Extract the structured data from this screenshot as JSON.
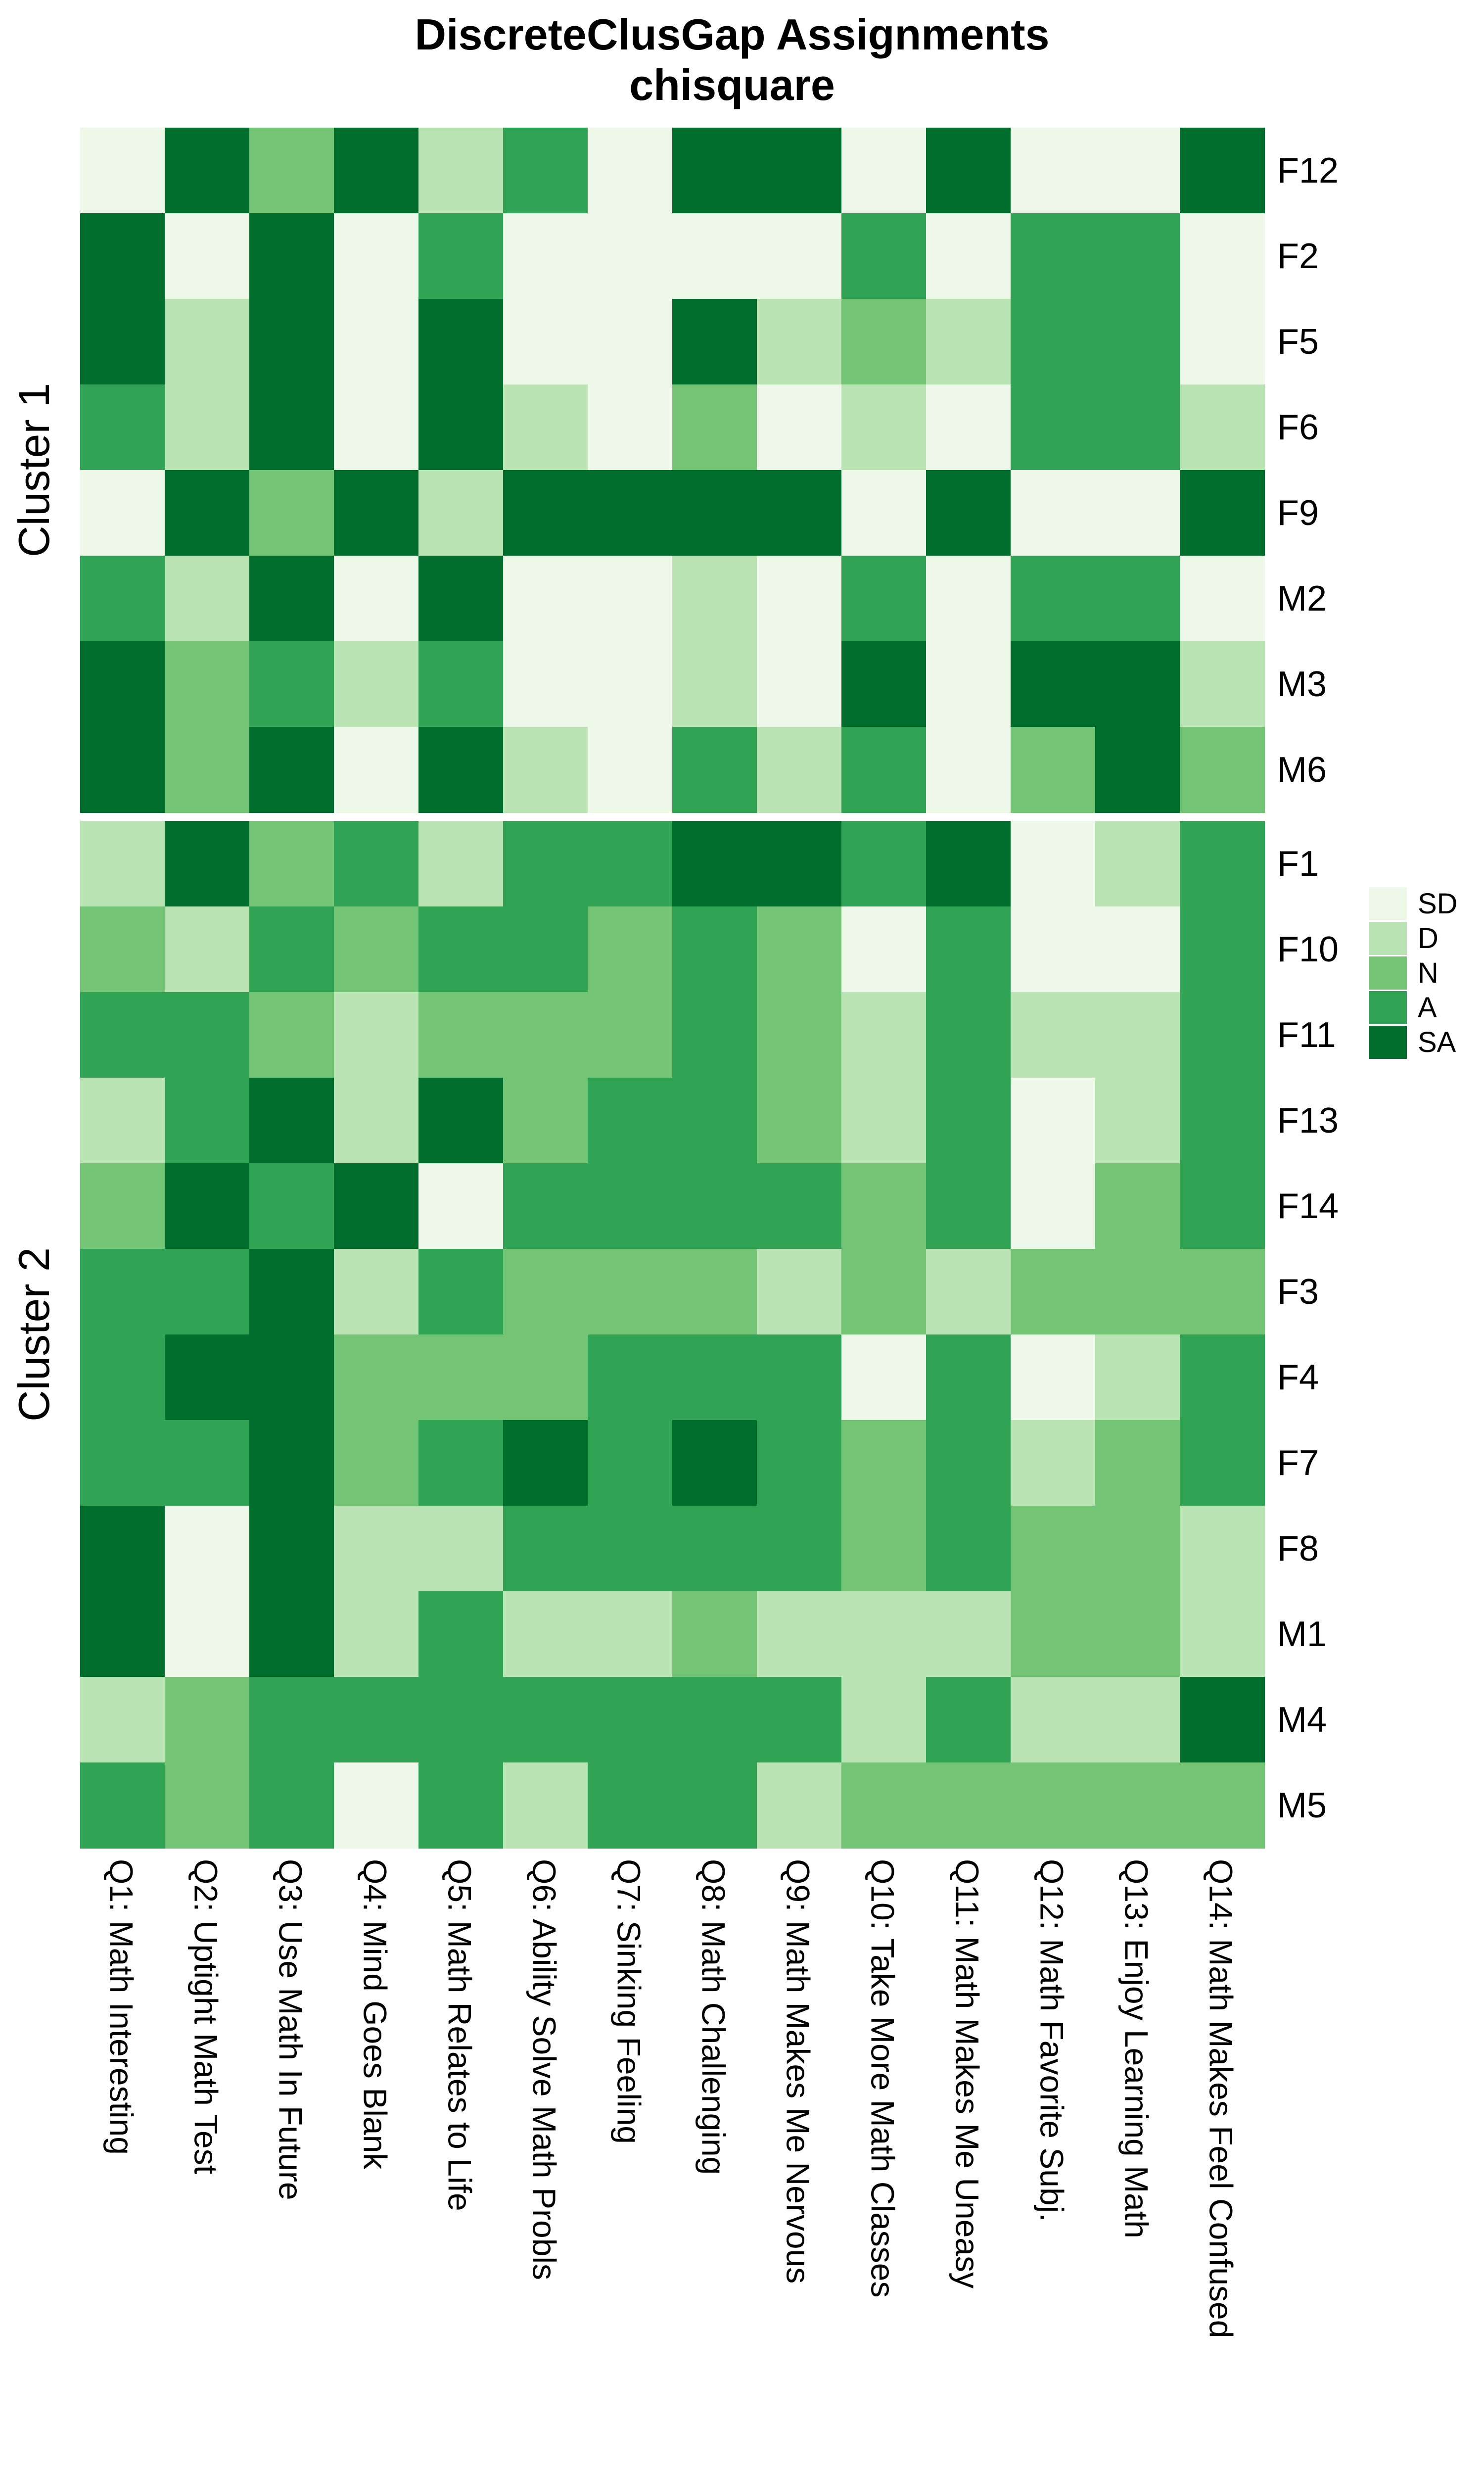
{
  "title": "DiscreteClusGap Assignments",
  "subtitle": "chisquare",
  "chart_data": {
    "type": "heatmap",
    "title": "DiscreteClusGap Assignments",
    "subtitle": "chisquare",
    "x_labels": [
      "Q1: Math Interesting",
      "Q2: Uptight Math Test",
      "Q3: Use Math In Future",
      "Q4: Mind Goes Blank",
      "Q5: Math Relates to Life",
      "Q6: Ability Solve Math Probls",
      "Q7: Sinking Feeling",
      "Q8: Math Challenging",
      "Q9: Math Makes Me Nervous",
      "Q10: Take More Math Classes",
      "Q11: Math Makes Me Uneasy",
      "Q12: Math Favorite Subj.",
      "Q13: Enjoy Learning Math",
      "Q14: Math Makes Feel Confused"
    ],
    "value_scale": [
      "SD",
      "D",
      "N",
      "A",
      "SA"
    ],
    "legend": {
      "position": "right",
      "labels": [
        "SD",
        "D",
        "N",
        "A",
        "SA"
      ],
      "colors": {
        "SD": "#edf8e9",
        "D": "#bae4b3",
        "N": "#74c476",
        "A": "#31a354",
        "SA": "#006d2c"
      }
    },
    "row_groups": [
      {
        "label": "Cluster 1",
        "rows": [
          "F12",
          "F2",
          "F5",
          "F6",
          "F9",
          "M2",
          "M3",
          "M6"
        ],
        "values": [
          [
            "SD",
            "SA",
            "N",
            "SA",
            "D",
            "A",
            "SD",
            "SA",
            "SA",
            "SD",
            "SA",
            "SD",
            "SD",
            "SA"
          ],
          [
            "SA",
            "SD",
            "SA",
            "SD",
            "A",
            "SD",
            "SD",
            "SD",
            "SD",
            "A",
            "SD",
            "A",
            "A",
            "SD"
          ],
          [
            "SA",
            "D",
            "SA",
            "SD",
            "SA",
            "SD",
            "SD",
            "SA",
            "D",
            "N",
            "D",
            "A",
            "A",
            "SD"
          ],
          [
            "A",
            "D",
            "SA",
            "SD",
            "SA",
            "D",
            "SD",
            "N",
            "SD",
            "D",
            "SD",
            "A",
            "A",
            "D"
          ],
          [
            "SD",
            "SA",
            "N",
            "SA",
            "D",
            "SA",
            "SA",
            "SA",
            "SA",
            "SD",
            "SA",
            "SD",
            "SD",
            "SA"
          ],
          [
            "A",
            "D",
            "SA",
            "SD",
            "SA",
            "SD",
            "SD",
            "D",
            "SD",
            "A",
            "SD",
            "A",
            "A",
            "SD"
          ],
          [
            "SA",
            "N",
            "A",
            "D",
            "A",
            "SD",
            "SD",
            "D",
            "SD",
            "SA",
            "SD",
            "SA",
            "SA",
            "D"
          ],
          [
            "SA",
            "N",
            "SA",
            "SD",
            "SA",
            "D",
            "SD",
            "A",
            "D",
            "A",
            "SD",
            "N",
            "SA",
            "N"
          ]
        ]
      },
      {
        "label": "Cluster 2",
        "rows": [
          "F1",
          "F10",
          "F11",
          "F13",
          "F14",
          "F3",
          "F4",
          "F7",
          "F8",
          "M1",
          "M4",
          "M5"
        ],
        "values": [
          [
            "D",
            "SA",
            "N",
            "A",
            "D",
            "A",
            "A",
            "SA",
            "SA",
            "A",
            "SA",
            "SD",
            "D",
            "A"
          ],
          [
            "N",
            "D",
            "A",
            "N",
            "A",
            "A",
            "N",
            "A",
            "N",
            "SD",
            "A",
            "SD",
            "SD",
            "A"
          ],
          [
            "A",
            "A",
            "N",
            "D",
            "N",
            "N",
            "N",
            "A",
            "N",
            "D",
            "A",
            "D",
            "D",
            "A"
          ],
          [
            "D",
            "A",
            "SA",
            "D",
            "SA",
            "N",
            "A",
            "A",
            "N",
            "D",
            "A",
            "SD",
            "D",
            "A"
          ],
          [
            "N",
            "SA",
            "A",
            "SA",
            "SD",
            "A",
            "A",
            "A",
            "A",
            "N",
            "A",
            "SD",
            "N",
            "A"
          ],
          [
            "A",
            "A",
            "SA",
            "D",
            "A",
            "N",
            "N",
            "N",
            "D",
            "N",
            "D",
            "N",
            "N",
            "N"
          ],
          [
            "A",
            "SA",
            "SA",
            "N",
            "N",
            "N",
            "A",
            "A",
            "A",
            "SD",
            "A",
            "SD",
            "D",
            "A"
          ],
          [
            "A",
            "A",
            "SA",
            "N",
            "A",
            "SA",
            "A",
            "SA",
            "A",
            "N",
            "A",
            "D",
            "N",
            "A"
          ],
          [
            "SA",
            "SD",
            "SA",
            "D",
            "D",
            "A",
            "A",
            "A",
            "A",
            "N",
            "A",
            "N",
            "N",
            "D"
          ],
          [
            "SA",
            "SD",
            "SA",
            "D",
            "A",
            "D",
            "D",
            "N",
            "D",
            "D",
            "D",
            "N",
            "N",
            "D"
          ],
          [
            "D",
            "N",
            "A",
            "A",
            "A",
            "A",
            "A",
            "A",
            "A",
            "D",
            "A",
            "D",
            "D",
            "SA"
          ],
          [
            "A",
            "N",
            "A",
            "SD",
            "A",
            "D",
            "A",
            "A",
            "D",
            "N",
            "N",
            "N",
            "N",
            "N"
          ]
        ]
      }
    ]
  }
}
